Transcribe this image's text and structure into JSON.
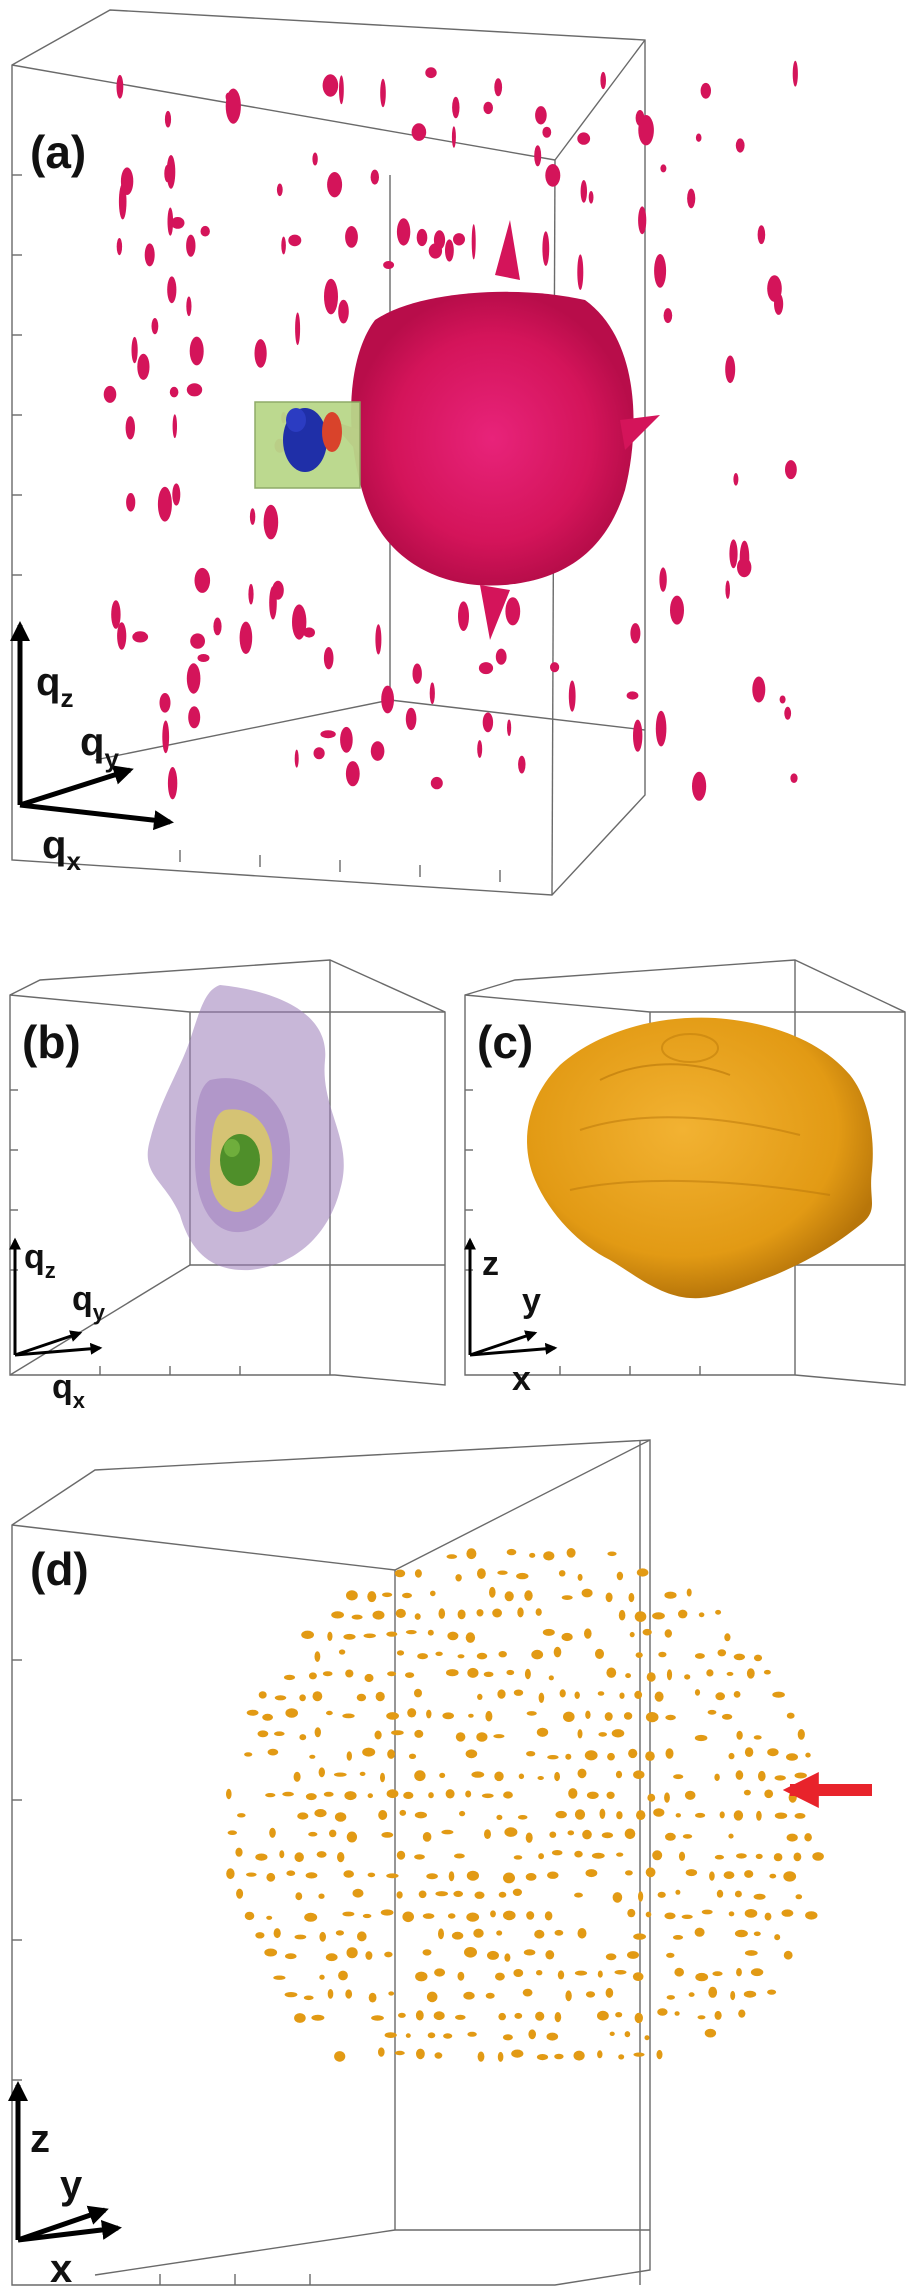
{
  "figure": {
    "panels": [
      {
        "id": "a",
        "label": "(a)",
        "axes": [
          {
            "id": "qz",
            "main": "q",
            "sub": "z"
          },
          {
            "id": "qy",
            "main": "q",
            "sub": "y"
          },
          {
            "id": "qx",
            "main": "q",
            "sub": "x"
          }
        ],
        "colors": {
          "speckle": "#d4145a",
          "inset": "#b9d88a",
          "inset_blue": "#1f2fa8",
          "inset_red": "#d9432b"
        }
      },
      {
        "id": "b",
        "label": "(b)",
        "axes": [
          {
            "id": "qz",
            "main": "q",
            "sub": "z"
          },
          {
            "id": "qy",
            "main": "q",
            "sub": "y"
          },
          {
            "id": "qx",
            "main": "q",
            "sub": "x"
          }
        ],
        "colors": {
          "outer": "#9b7cb8",
          "middle": "#d9c86a",
          "core": "#4f8f2a"
        }
      },
      {
        "id": "c",
        "label": "(c)",
        "axes": [
          {
            "id": "z",
            "main": "z",
            "sub": ""
          },
          {
            "id": "y",
            "main": "y",
            "sub": ""
          },
          {
            "id": "x",
            "main": "x",
            "sub": ""
          }
        ],
        "colors": {
          "particle": "#e29a14"
        }
      },
      {
        "id": "d",
        "label": "(d)",
        "axes": [
          {
            "id": "z",
            "main": "z",
            "sub": ""
          },
          {
            "id": "y",
            "main": "y",
            "sub": ""
          },
          {
            "id": "x",
            "main": "x",
            "sub": ""
          }
        ],
        "colors": {
          "particle": "#e29a14",
          "arrow": "#e8232b"
        }
      }
    ]
  }
}
